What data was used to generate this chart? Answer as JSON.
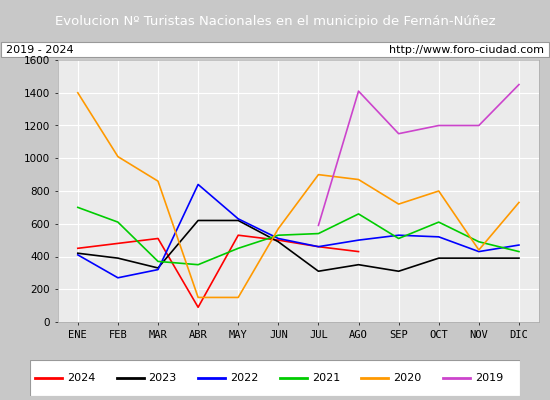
{
  "title": "Evolucion Nº Turistas Nacionales en el municipio de Fernán-Núñez",
  "subtitle_left": "2019 - 2024",
  "subtitle_right": "http://www.foro-ciudad.com",
  "xlabel_months": [
    "ENE",
    "FEB",
    "MAR",
    "ABR",
    "MAY",
    "JUN",
    "JUL",
    "AGO",
    "SEP",
    "OCT",
    "NOV",
    "DIC"
  ],
  "ylim": [
    0,
    1600
  ],
  "yticks": [
    0,
    200,
    400,
    600,
    800,
    1000,
    1200,
    1400,
    1600
  ],
  "series": {
    "2024": {
      "color": "#ff0000",
      "data": [
        450,
        480,
        510,
        90,
        530,
        500,
        460,
        430,
        null,
        null,
        null,
        null
      ]
    },
    "2023": {
      "color": "#000000",
      "data": [
        420,
        390,
        330,
        620,
        620,
        490,
        310,
        350,
        310,
        390,
        390,
        390
      ]
    },
    "2022": {
      "color": "#0000ff",
      "data": [
        410,
        270,
        320,
        840,
        630,
        510,
        460,
        500,
        530,
        520,
        430,
        470
      ]
    },
    "2021": {
      "color": "#00cc00",
      "data": [
        700,
        610,
        370,
        350,
        450,
        530,
        540,
        660,
        510,
        610,
        490,
        430
      ]
    },
    "2020": {
      "color": "#ff9900",
      "data": [
        1400,
        1010,
        860,
        150,
        150,
        570,
        900,
        870,
        720,
        800,
        440,
        730
      ]
    },
    "2019": {
      "color": "#cc44cc",
      "data": [
        null,
        null,
        null,
        null,
        null,
        null,
        590,
        1410,
        1150,
        1200,
        1200,
        1450
      ]
    }
  },
  "background_color": "#ebebeb",
  "title_bg_color": "#4472c4",
  "title_text_color": "#ffffff",
  "box_color": "#ffffff",
  "grid_color": "#ffffff",
  "outer_bg_color": "#c8c8c8"
}
